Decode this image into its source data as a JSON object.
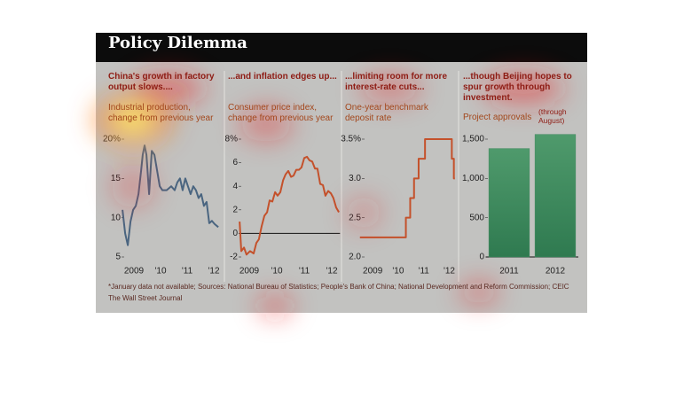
{
  "title": "Policy Dilemma",
  "chart_data": [
    {
      "type": "line",
      "title": "China's growth in factory output slows....",
      "subtitle": "Industrial production, change from previous year",
      "x": [
        2009.07,
        2009.17,
        2009.27,
        2009.37,
        2009.47,
        2009.57,
        2009.67,
        2009.77,
        2009.83,
        2009.9,
        2009.97,
        2010.07,
        2010.17,
        2010.27,
        2010.37,
        2010.47,
        2010.57,
        2010.73,
        2010.9,
        2011.03,
        2011.13,
        2011.23,
        2011.33,
        2011.43,
        2011.53,
        2011.63,
        2011.73,
        2011.83,
        2011.93,
        2012.03,
        2012.13,
        2012.23,
        2012.33,
        2012.43,
        2012.53,
        2012.67
      ],
      "series": [
        {
          "color": "#4a6580",
          "values": [
            11,
            8,
            6.5,
            9.5,
            11,
            11.5,
            13,
            16,
            18,
            19.2,
            18,
            13,
            18.5,
            18,
            16,
            14,
            13.5,
            13.5,
            14,
            13.5,
            14.5,
            15,
            13.5,
            15,
            14,
            13,
            14,
            13.5,
            12.5,
            13,
            11.5,
            12,
            9.3,
            9.6,
            9.2,
            8.8
          ]
        }
      ],
      "xlim": [
        2008.9,
        2012.8
      ],
      "xticks": [
        {
          "value": 2009.5,
          "label": "2009"
        },
        {
          "value": 2010.5,
          "label": "'10"
        },
        {
          "value": 2011.5,
          "label": "'11"
        },
        {
          "value": 2012.5,
          "label": "'12"
        }
      ],
      "ylim": [
        5,
        20
      ],
      "yticks": [
        5,
        10,
        15,
        {
          "value": 20,
          "label": "20%"
        }
      ]
    },
    {
      "type": "line",
      "title": "...and inflation edges up...",
      "subtitle": "Consumer price index, change from previous year",
      "x": [
        2009.15,
        2009.21,
        2009.31,
        2009.4,
        2009.53,
        2009.66,
        2009.76,
        2009.85,
        2009.95,
        2010.05,
        2010.15,
        2010.24,
        2010.34,
        2010.44,
        2010.53,
        2010.63,
        2010.73,
        2010.82,
        2010.92,
        2011.02,
        2011.11,
        2011.21,
        2011.31,
        2011.4,
        2011.5,
        2011.6,
        2011.69,
        2011.79,
        2011.89,
        2011.98,
        2012.08,
        2012.18,
        2012.27,
        2012.37,
        2012.47,
        2012.56,
        2012.66,
        2012.76
      ],
      "series": [
        {
          "color": "#c4512b",
          "values": [
            1,
            -1.5,
            -1.2,
            -1.8,
            -1.5,
            -1.7,
            -0.8,
            -0.5,
            0.6,
            1.5,
            1.8,
            2.8,
            2.7,
            3.5,
            3.2,
            3.5,
            4.5,
            5,
            5.3,
            4.8,
            4.9,
            5.4,
            5.4,
            5.6,
            6.4,
            6.5,
            6.2,
            6.1,
            5.5,
            5.5,
            4.2,
            4.1,
            3.2,
            3.6,
            3.4,
            3,
            2.2,
            1.8
          ]
        }
      ],
      "xlim": [
        2009.0,
        2012.8
      ],
      "xticks": [
        {
          "value": 2009.5,
          "label": "2009"
        },
        {
          "value": 2010.5,
          "label": "'10"
        },
        {
          "value": 2011.5,
          "label": "'11"
        },
        {
          "value": 2012.5,
          "label": "'12"
        }
      ],
      "ylim": [
        -2,
        8
      ],
      "yticks": [
        -2,
        0,
        2,
        4,
        6,
        {
          "value": 8,
          "label": "8%"
        }
      ]
    },
    {
      "type": "line",
      "title": "...limiting room for more interest-rate cuts...",
      "subtitle": "One-year benchmark deposit rate",
      "x": [
        2009.0,
        2010.8,
        2010.8,
        2010.97,
        2010.97,
        2011.12,
        2011.12,
        2011.3,
        2011.3,
        2011.55,
        2011.55,
        2012.6,
        2012.6,
        2012.68,
        2012.68,
        2012.72
      ],
      "series": [
        {
          "color": "#c4512b",
          "values": [
            2.25,
            2.25,
            2.5,
            2.5,
            2.75,
            2.75,
            3.0,
            3.0,
            3.25,
            3.25,
            3.5,
            3.5,
            3.25,
            3.25,
            3.0,
            3.0
          ]
        }
      ],
      "xlim": [
        2008.8,
        2012.9
      ],
      "xticks": [
        {
          "value": 2009.5,
          "label": "2009"
        },
        {
          "value": 2010.5,
          "label": "'10"
        },
        {
          "value": 2011.5,
          "label": "'11"
        },
        {
          "value": 2012.5,
          "label": "'12"
        }
      ],
      "ylim": [
        2,
        3.5
      ],
      "yticks": [
        {
          "value": 2,
          "label": "2.0"
        },
        2.5,
        {
          "value": 3,
          "label": "3.0"
        },
        {
          "value": 3.5,
          "label": "3.5%"
        }
      ]
    },
    {
      "type": "bar",
      "title": "...though Beijing hopes to spur growth through investment.",
      "subtitle": "Project approvals",
      "annotation": "(through August)",
      "categories": [
        "2011",
        "2012"
      ],
      "values": [
        1380,
        1560
      ],
      "color": "#3f8a5e",
      "ylim": [
        0,
        1500
      ],
      "yticks": [
        0,
        500,
        {
          "value": 1000,
          "label": "1,000"
        },
        {
          "value": 1500,
          "label": "1,500"
        }
      ]
    }
  ],
  "footnote": "*January data not available; Sources: National Bureau of Statistics; People's Bank of China; National Development and Reform Commission; CEIC",
  "credit": "The Wall Street Journal"
}
